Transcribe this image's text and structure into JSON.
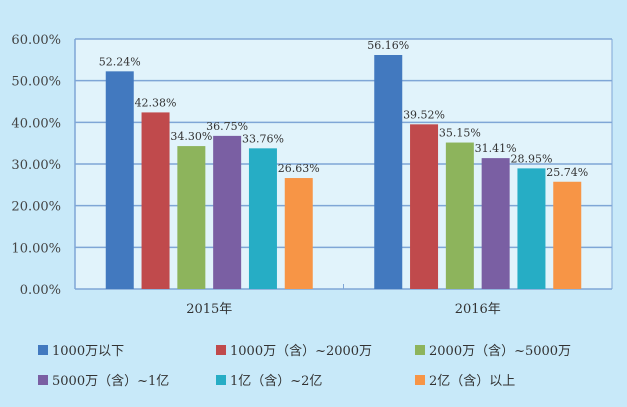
{
  "chart_data": {
    "type": "bar",
    "title": "",
    "xlabel": "",
    "ylabel": "",
    "categories": [
      "2015年",
      "2016年"
    ],
    "ylim": [
      0,
      60
    ],
    "yticks": [
      "0.00%",
      "10.00%",
      "20.00%",
      "30.00%",
      "40.00%",
      "50.00%",
      "60.00%"
    ],
    "grid": true,
    "legend_position": "bottom",
    "series": [
      {
        "name": "1000万以下",
        "color": "#4279bf",
        "values": [
          52.24,
          56.16
        ],
        "labels": [
          "52.24%",
          "56.16%"
        ]
      },
      {
        "name": "1000万（含）~2000万",
        "color": "#c04a4c",
        "values": [
          42.38,
          39.52
        ],
        "labels": [
          "42.38%",
          "39.52%"
        ]
      },
      {
        "name": "2000万（含）~5000万",
        "color": "#8db45c",
        "values": [
          34.3,
          35.15
        ],
        "labels": [
          "34.30%",
          "35.15%"
        ]
      },
      {
        "name": "5000万（含）~1亿",
        "color": "#7a5fa3",
        "values": [
          36.75,
          31.41
        ],
        "labels": [
          "36.75%",
          "31.41%"
        ]
      },
      {
        "name": "1亿（含）~2亿",
        "color": "#26adc5",
        "values": [
          33.76,
          28.95
        ],
        "labels": [
          "33.76%",
          "28.95%"
        ]
      },
      {
        "name": "2亿（含）以上",
        "color": "#f79546",
        "values": [
          26.63,
          25.74
        ],
        "labels": [
          "26.63%",
          "25.74%"
        ]
      }
    ]
  }
}
